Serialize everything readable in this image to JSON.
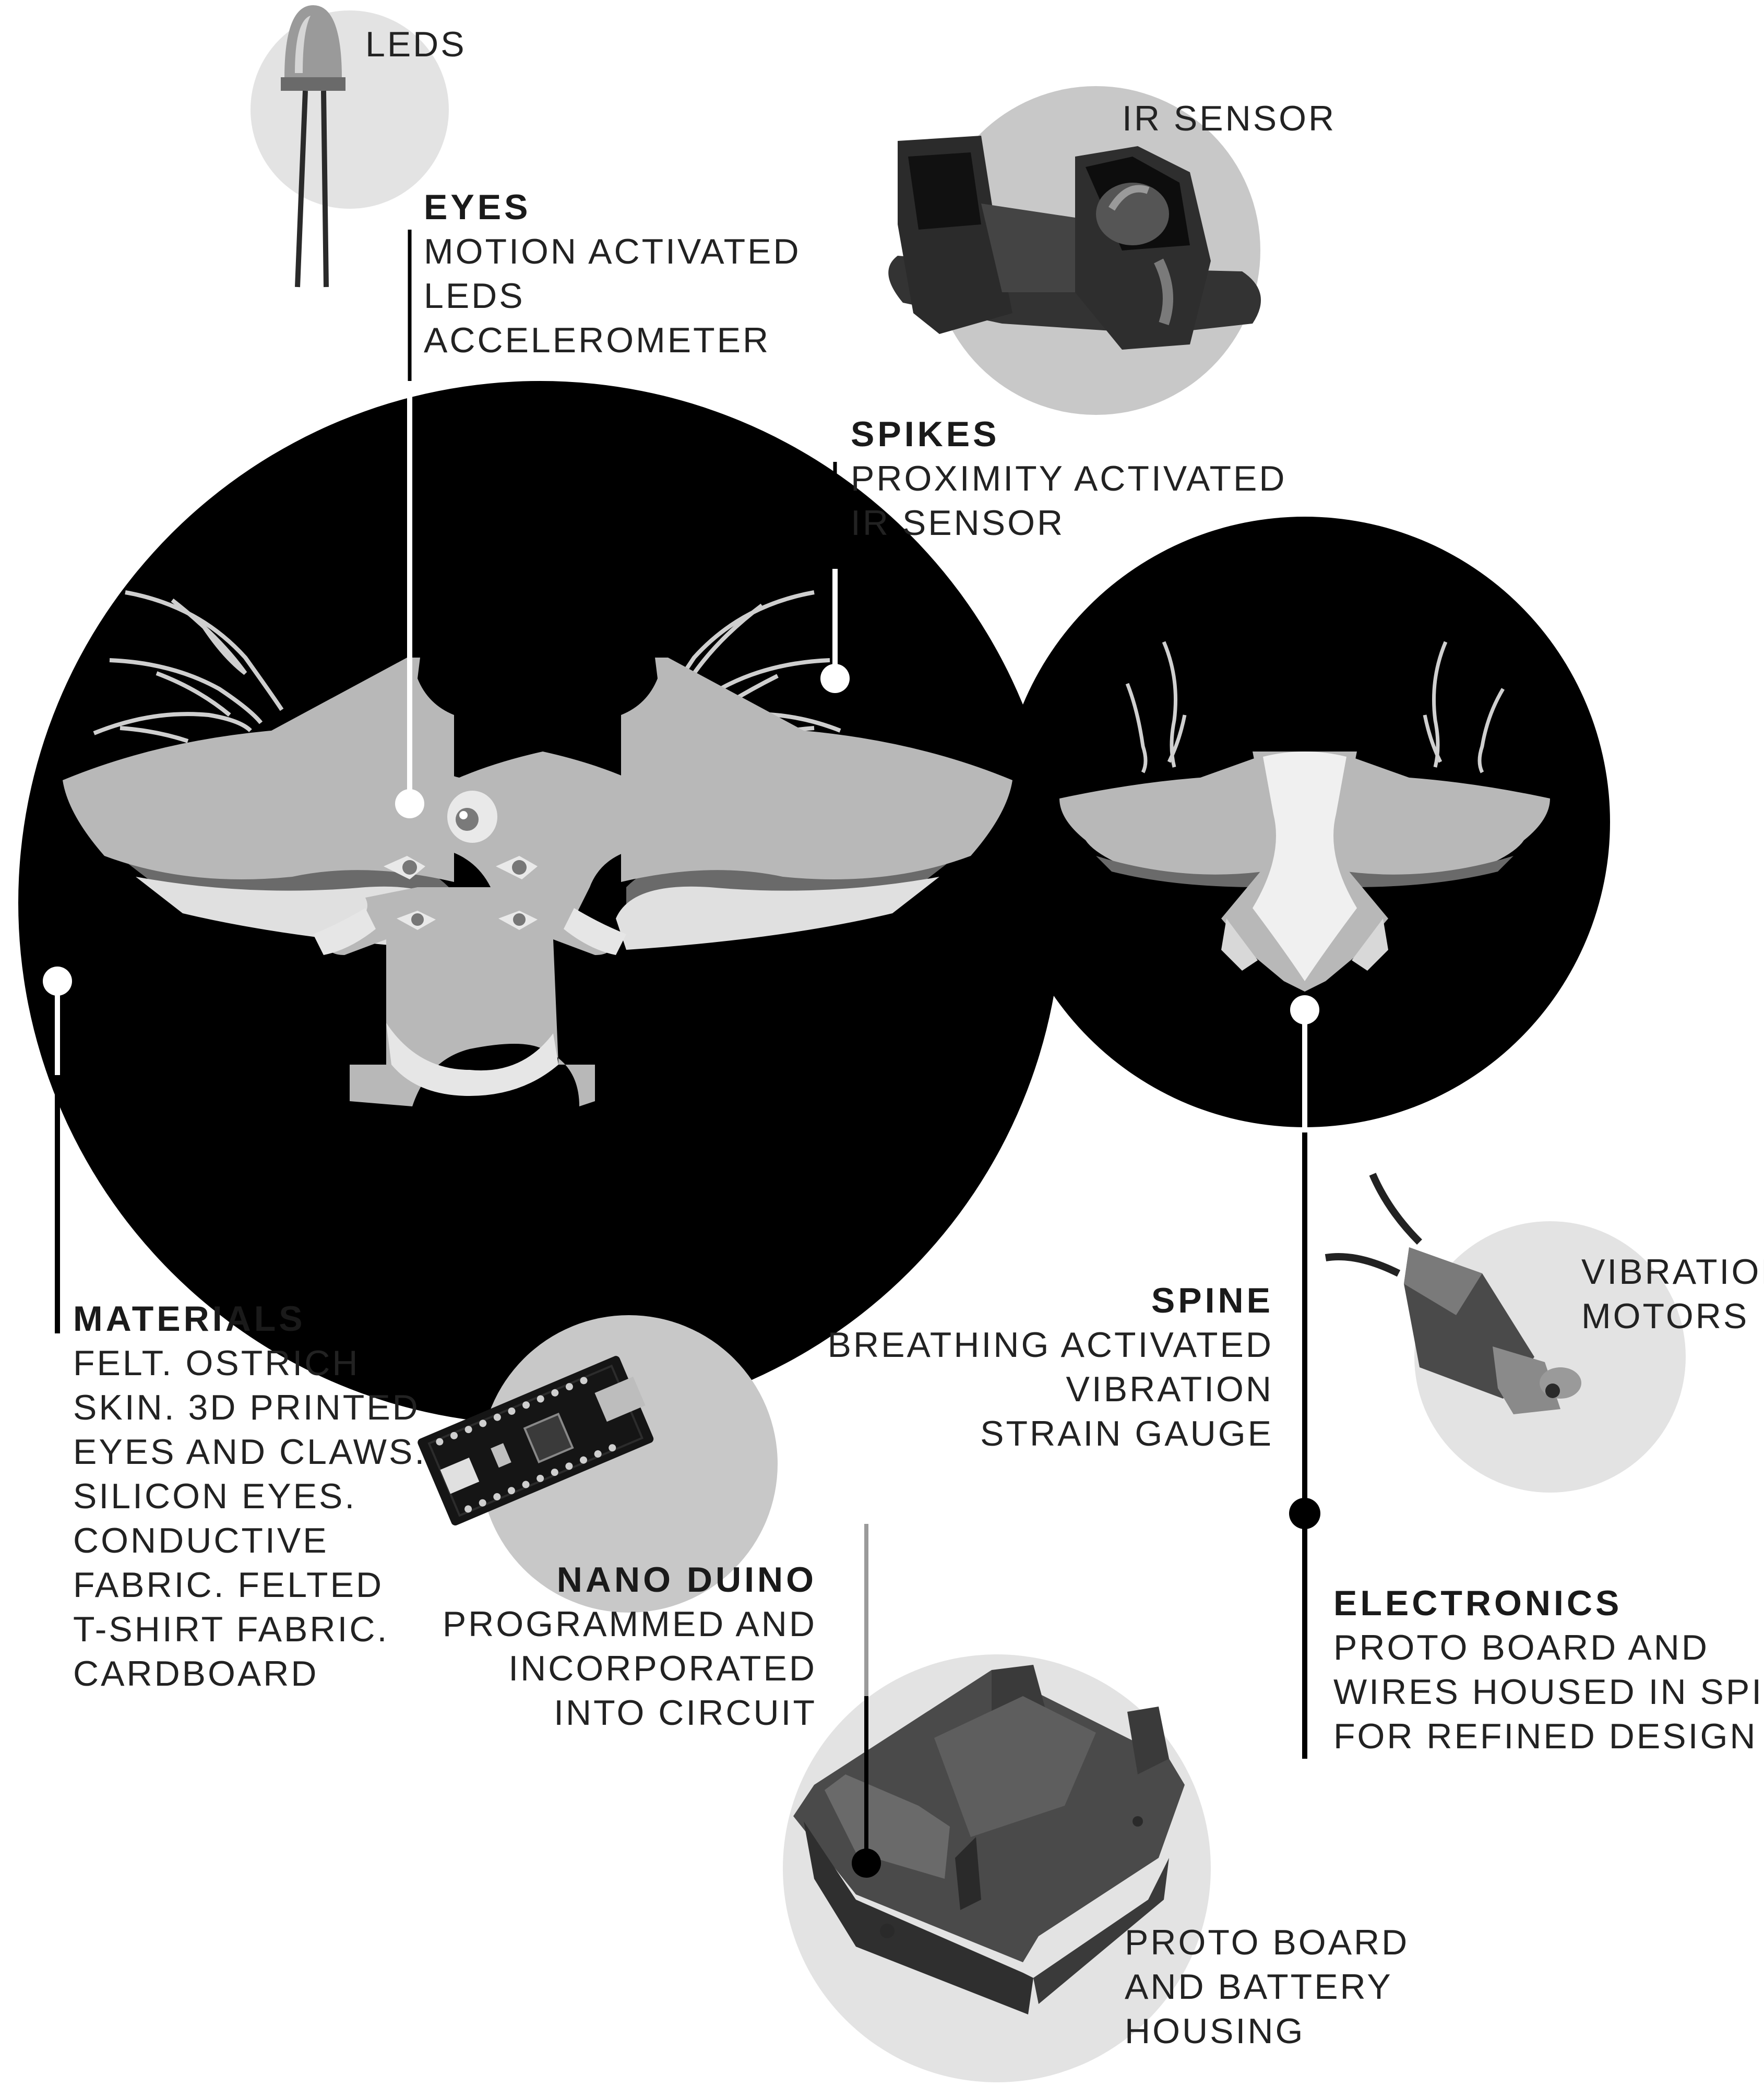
{
  "colors": {
    "background": "#ffffff",
    "dark_circle": "#000000",
    "light_circle": "#e3e3e3",
    "mid_circle": "#c8c8c8",
    "part_gray": "#b8b8b8",
    "part_dark": "#3a3a3a",
    "line": "#000000"
  },
  "components": {
    "leds": {
      "label": "LEDS",
      "icon": "led-icon"
    },
    "ir_sensor": {
      "label": "IR SENSOR",
      "icon": "ir-sensor-icon"
    },
    "vibration_motors": {
      "line1": "VIBRATION",
      "line2": "MOTORS",
      "icon": "vibration-motor-icon"
    },
    "nano_duino_board": {
      "icon": "nano-board-icon"
    },
    "housing": {
      "line1": "PROTO BOARD",
      "line2": "AND BATTERY",
      "line3": "HOUSING",
      "icon": "housing-box-icon"
    }
  },
  "callouts": {
    "eyes": {
      "title": "EYES",
      "lines": [
        "MOTION ACTIVATED",
        "LEDS",
        "ACCELEROMETER"
      ]
    },
    "spikes": {
      "title": "SPIKES",
      "lines": [
        "PROXIMITY ACTIVATED",
        "IR SENSOR"
      ]
    },
    "materials": {
      "title": "MATERIALS",
      "lines": [
        "FELT. OSTRICH",
        "SKIN. 3D PRINTED",
        "EYES AND CLAWS.",
        "SILICON EYES.",
        "CONDUCTIVE",
        "FABRIC. FELTED",
        "T-SHIRT FABRIC.",
        "CARDBOARD"
      ]
    },
    "spine": {
      "title": "SPINE",
      "lines": [
        "BREATHING ACTIVATED",
        "VIBRATION",
        "STRAIN GAUGE"
      ]
    },
    "nano_duino": {
      "title": "NANO DUINO",
      "lines": [
        "PROGRAMMED AND",
        "INCORPORATED",
        "INTO CIRCUIT"
      ]
    },
    "electronics": {
      "title": "ELECTRONICS",
      "lines": [
        "PROTO BOARD AND",
        "WIRES HOUSED IN SPINE",
        "FOR REFINED DESIGN"
      ]
    }
  },
  "views": {
    "front": {
      "icon": "creature-front-illustration"
    },
    "back": {
      "icon": "creature-back-illustration"
    }
  }
}
